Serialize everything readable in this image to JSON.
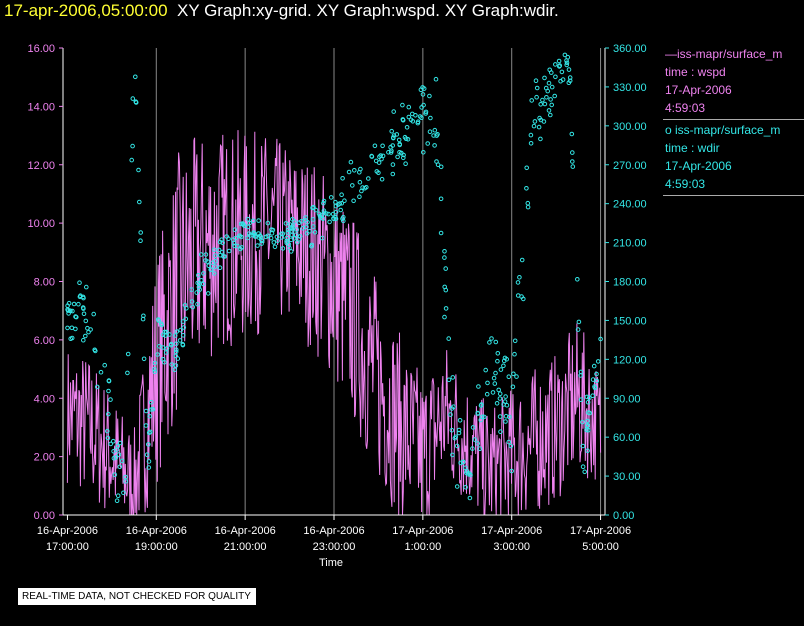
{
  "header": {
    "timestamp": "17-apr-2006,05:00:00",
    "graphs": "XY Graph:xy-grid.  XY Graph:wspd.  XY Graph:wdir."
  },
  "legend": {
    "series1": {
      "name": "—iss-mapr/surface_m",
      "line2": "time : wspd",
      "date": "17-Apr-2006",
      "time": "4:59:03"
    },
    "series2": {
      "name": "o  iss-mapr/surface_m",
      "line2": "time : wdir",
      "date": "17-Apr-2006",
      "time": "4:59:03"
    }
  },
  "note": "REAL-TIME DATA, NOT CHECKED FOR QUALITY",
  "colors": {
    "wspd": "#ee82ee",
    "wdir": "#33e6e6",
    "grid": "#888888",
    "axis": "#ffffff"
  },
  "chart_data": {
    "type": "line+scatter",
    "xlabel": "Time",
    "x_range_hours": [
      16.9,
      29.1
    ],
    "x_ticks": [
      {
        "hour": 17,
        "date": "16-Apr-2006",
        "time": "17:00:00"
      },
      {
        "hour": 19,
        "date": "16-Apr-2006",
        "time": "19:00:00"
      },
      {
        "hour": 21,
        "date": "16-Apr-2006",
        "time": "21:00:00"
      },
      {
        "hour": 23,
        "date": "16-Apr-2006",
        "time": "23:00:00"
      },
      {
        "hour": 25,
        "date": "17-Apr-2006",
        "time": "1:00:00"
      },
      {
        "hour": 27,
        "date": "17-Apr-2006",
        "time": "3:00:00"
      },
      {
        "hour": 29,
        "date": "17-Apr-2006",
        "time": "5:00:00"
      }
    ],
    "grid_hours": [
      19,
      21,
      23,
      25,
      27,
      29
    ],
    "left_axis": {
      "ylim": [
        0,
        16
      ],
      "ticks": [
        "0.00",
        "2.00",
        "4.00",
        "6.00",
        "8.00",
        "10.00",
        "12.00",
        "14.00",
        "16.00"
      ]
    },
    "right_axis": {
      "ylim": [
        0,
        360
      ],
      "ticks": [
        "0.00",
        "30.00",
        "60.00",
        "90.00",
        "120.00",
        "150.00",
        "180.00",
        "210.00",
        "240.00",
        "270.00",
        "300.00",
        "330.00",
        "360.00"
      ]
    },
    "series": [
      {
        "name": "wspd",
        "axis": "left",
        "style": "line",
        "x": [
          17.0,
          17.5,
          18.0,
          18.5,
          19.0,
          19.5,
          20.0,
          20.5,
          21.0,
          21.5,
          22.0,
          22.5,
          23.0,
          23.5,
          24.0,
          24.5,
          25.0,
          25.5,
          26.0,
          26.5,
          27.0,
          27.5,
          28.0,
          28.5,
          29.0
        ],
        "y": [
          3.5,
          3.0,
          2.0,
          1.0,
          5.0,
          8.0,
          9.0,
          9.5,
          9.5,
          9.8,
          9.5,
          9.0,
          8.0,
          6.5,
          4.5,
          3.0,
          2.0,
          3.5,
          2.5,
          1.5,
          2.0,
          2.5,
          3.0,
          4.0,
          3.0
        ],
        "amp": [
          1.5,
          1.6,
          1.4,
          1.2,
          2.5,
          2.8,
          2.6,
          2.4,
          2.3,
          2.1,
          2.0,
          2.1,
          2.2,
          2.3,
          2.2,
          2.0,
          1.8,
          1.6,
          1.4,
          1.4,
          1.5,
          1.6,
          1.6,
          1.7,
          1.2
        ]
      },
      {
        "name": "wdir",
        "axis": "right",
        "style": "circles",
        "x": [
          17.0,
          17.4,
          17.8,
          18.1,
          18.3,
          18.5,
          18.8,
          19.0,
          19.5,
          20.0,
          20.5,
          21.0,
          21.5,
          22.0,
          22.5,
          23.0,
          23.5,
          24.0,
          24.5,
          25.0,
          25.3,
          25.7,
          26.0,
          26.5,
          27.0,
          27.5,
          27.7,
          28.0,
          28.3,
          28.6,
          29.0
        ],
        "y": [
          155,
          160,
          100,
          45,
          30,
          355,
          40,
          135,
          130,
          180,
          205,
          220,
          215,
          215,
          225,
          235,
          255,
          275,
          290,
          310,
          300,
          60,
          20,
          120,
          70,
          330,
          310,
          340,
          345,
          50,
          130
        ],
        "spread": [
          18,
          22,
          30,
          28,
          22,
          12,
          20,
          15,
          14,
          16,
          14,
          10,
          10,
          10,
          14,
          14,
          18,
          22,
          22,
          25,
          30,
          35,
          22,
          30,
          35,
          25,
          30,
          14,
          10,
          20,
          22
        ]
      }
    ]
  }
}
